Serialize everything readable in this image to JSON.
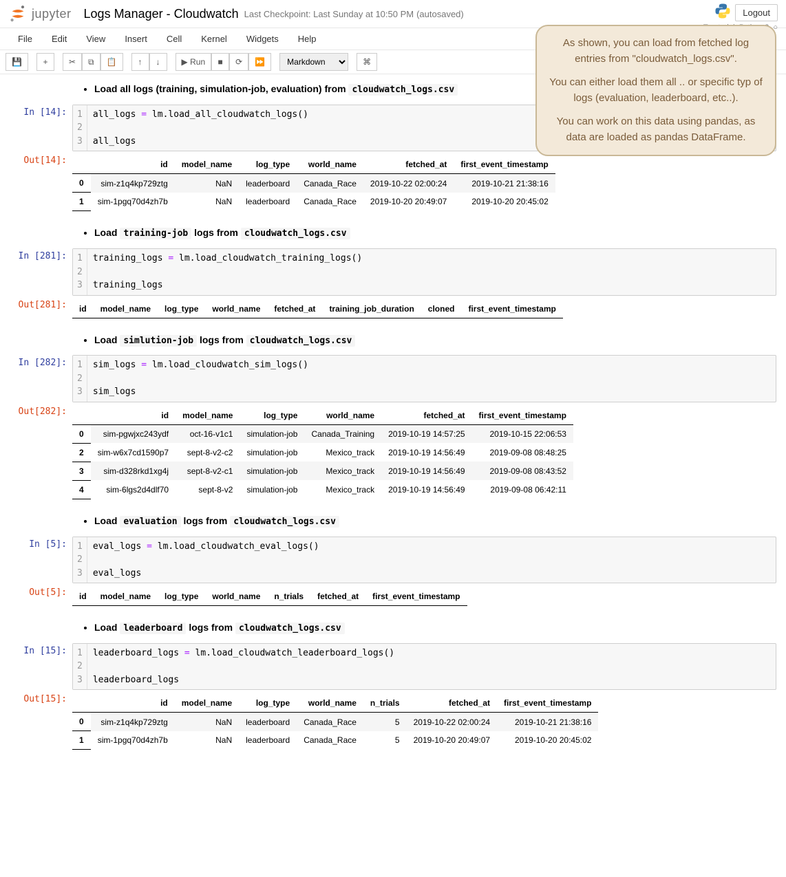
{
  "header": {
    "logo_text": "jupyter",
    "title": "Logs Manager - Cloudwatch",
    "checkpoint": "Last Checkpoint: Last Sunday at 10:50 PM",
    "autosave": "(autosaved)",
    "logout": "Logout",
    "trust_left": "Trusted",
    "trust_right": "Python 3"
  },
  "menu": {
    "file": "File",
    "edit": "Edit",
    "view": "View",
    "insert": "Insert",
    "cell": "Cell",
    "kernel": "Kernel",
    "widgets": "Widgets",
    "help": "Help"
  },
  "toolbar": {
    "run_label": "Run",
    "celltype": "Markdown",
    "icons": {
      "save": "💾",
      "add": "+",
      "cut": "✂",
      "copy": "⧉",
      "paste": "📋",
      "up": "↑",
      "down": "↓",
      "play": "▶",
      "stop": "■",
      "restart": "⟳",
      "ff": "⏩",
      "cmd": "⌘"
    }
  },
  "callout": {
    "p1": "As shown, you can load from fetched log entries from \"cloudwatch_logs.csv\".",
    "p2": "You can either load them all .. or specific typ of logs (evaluation, leaderboard, etc..).",
    "p3": "You can work on this data using pandas, as data are loaded as pandas DataFrame."
  },
  "md1": {
    "prefix": "Load all logs (training, simulation-job, evaluation) from ",
    "code": "cloudwatch_logs.csv"
  },
  "md2": {
    "p1": "Load ",
    "c1": "training-job",
    "p2": " logs from ",
    "c2": "cloudwatch_logs.csv"
  },
  "md3": {
    "p1": "Load ",
    "c1": "simlution-job",
    "p2": " logs from ",
    "c2": "cloudwatch_logs.csv"
  },
  "md4": {
    "p1": "Load ",
    "c1": "evaluation",
    "p2": " logs from ",
    "c2": "cloudwatch_logs.csv"
  },
  "md5": {
    "p1": "Load ",
    "c1": "leaderboard",
    "p2": " logs from ",
    "c2": "cloudwatch_logs.csv"
  },
  "cell1": {
    "prompt": "In [14]:",
    "g1": "1",
    "g2": "2",
    "g3": "3",
    "l1a": "all_logs ",
    "l1b": "=",
    "l1c": " lm.load_all_cloudwatch_logs()",
    "l3": "all_logs"
  },
  "out1": {
    "prompt": "Out[14]:",
    "cols": [
      "",
      "id",
      "model_name",
      "log_type",
      "world_name",
      "fetched_at",
      "first_event_timestamp"
    ],
    "rows": [
      [
        "0",
        "sim-z1q4kp729ztg",
        "NaN",
        "leaderboard",
        "Canada_Race",
        "2019-10-22 02:00:24",
        "2019-10-21 21:38:16"
      ],
      [
        "1",
        "sim-1pgq70d4zh7b",
        "NaN",
        "leaderboard",
        "Canada_Race",
        "2019-10-20 20:49:07",
        "2019-10-20 20:45:02"
      ]
    ]
  },
  "cell2": {
    "prompt": "In [281]:",
    "g1": "1",
    "g2": "2",
    "g3": "3",
    "l1a": "training_logs ",
    "l1b": "=",
    "l1c": " lm.load_cloudwatch_training_logs()",
    "l3": "training_logs"
  },
  "out2": {
    "prompt": "Out[281]:",
    "cols": [
      "id",
      "model_name",
      "log_type",
      "world_name",
      "fetched_at",
      "training_job_duration",
      "cloned",
      "first_event_timestamp"
    ]
  },
  "cell3": {
    "prompt": "In [282]:",
    "g1": "1",
    "g2": "2",
    "g3": "3",
    "l1a": "sim_logs ",
    "l1b": "=",
    "l1c": " lm.load_cloudwatch_sim_logs()",
    "l3": "sim_logs"
  },
  "out3": {
    "prompt": "Out[282]:",
    "cols": [
      "",
      "id",
      "model_name",
      "log_type",
      "world_name",
      "fetched_at",
      "first_event_timestamp"
    ],
    "rows": [
      [
        "0",
        "sim-pgwjxc243ydf",
        "oct-16-v1c1",
        "simulation-job",
        "Canada_Training",
        "2019-10-19 14:57:25",
        "2019-10-15 22:06:53"
      ],
      [
        "2",
        "sim-w6x7cd1590p7",
        "sept-8-v2-c2",
        "simulation-job",
        "Mexico_track",
        "2019-10-19 14:56:49",
        "2019-09-08 08:48:25"
      ],
      [
        "3",
        "sim-d328rkd1xg4j",
        "sept-8-v2-c1",
        "simulation-job",
        "Mexico_track",
        "2019-10-19 14:56:49",
        "2019-09-08 08:43:52"
      ],
      [
        "4",
        "sim-6lgs2d4dlf70",
        "sept-8-v2",
        "simulation-job",
        "Mexico_track",
        "2019-10-19 14:56:49",
        "2019-09-08 06:42:11"
      ]
    ]
  },
  "cell4": {
    "prompt": "In [5]:",
    "g1": "1",
    "g2": "2",
    "g3": "3",
    "l1a": "eval_logs ",
    "l1b": "=",
    "l1c": " lm.load_cloudwatch_eval_logs()",
    "l3": "eval_logs"
  },
  "out4": {
    "prompt": "Out[5]:",
    "cols": [
      "id",
      "model_name",
      "log_type",
      "world_name",
      "n_trials",
      "fetched_at",
      "first_event_timestamp"
    ]
  },
  "cell5": {
    "prompt": "In [15]:",
    "g1": "1",
    "g2": "2",
    "g3": "3",
    "l1a": "leaderboard_logs ",
    "l1b": "=",
    "l1c": " lm.load_cloudwatch_leaderboard_logs()",
    "l3": "leaderboard_logs"
  },
  "out5": {
    "prompt": "Out[15]:",
    "cols": [
      "",
      "id",
      "model_name",
      "log_type",
      "world_name",
      "n_trials",
      "fetched_at",
      "first_event_timestamp"
    ],
    "rows": [
      [
        "0",
        "sim-z1q4kp729ztg",
        "NaN",
        "leaderboard",
        "Canada_Race",
        "5",
        "2019-10-22 02:00:24",
        "2019-10-21 21:38:16"
      ],
      [
        "1",
        "sim-1pgq70d4zh7b",
        "NaN",
        "leaderboard",
        "Canada_Race",
        "5",
        "2019-10-20 20:49:07",
        "2019-10-20 20:45:02"
      ]
    ]
  },
  "colors": {
    "in_prompt": "#303F9F",
    "out_prompt": "#D84315",
    "operator": "#AA22FF",
    "callout_bg": "#f3e9d9",
    "callout_border": "#c9b896",
    "callout_text": "#7a5c3a"
  }
}
